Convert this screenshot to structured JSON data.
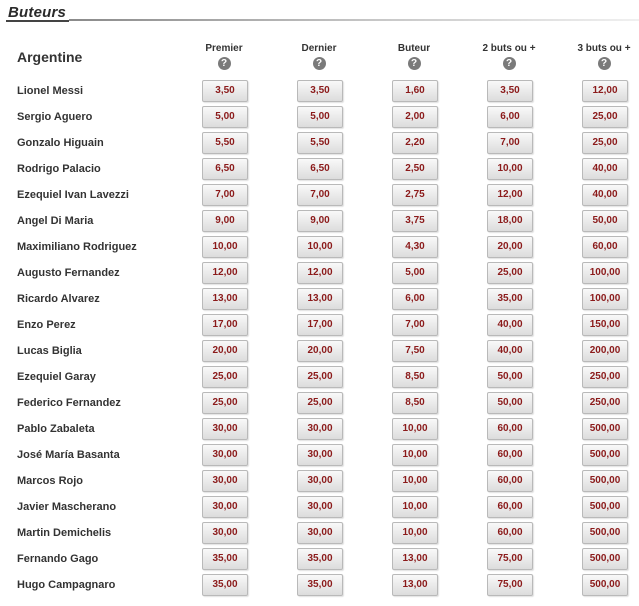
{
  "section": {
    "title": "Buteurs"
  },
  "team": "Argentine",
  "columns": [
    {
      "label": "Premier",
      "help_icon": "?"
    },
    {
      "label": "Dernier",
      "help_icon": "?"
    },
    {
      "label": "Buteur",
      "help_icon": "?"
    },
    {
      "label": "2 buts ou +",
      "help_icon": "?"
    },
    {
      "label": "3 buts ou +",
      "help_icon": "?"
    }
  ],
  "players": [
    {
      "name": "Lionel Messi",
      "odds": [
        "3,50",
        "3,50",
        "1,60",
        "3,50",
        "12,00"
      ]
    },
    {
      "name": "Sergio Aguero",
      "odds": [
        "5,00",
        "5,00",
        "2,00",
        "6,00",
        "25,00"
      ]
    },
    {
      "name": "Gonzalo Higuain",
      "odds": [
        "5,50",
        "5,50",
        "2,20",
        "7,00",
        "25,00"
      ]
    },
    {
      "name": "Rodrigo Palacio",
      "odds": [
        "6,50",
        "6,50",
        "2,50",
        "10,00",
        "40,00"
      ]
    },
    {
      "name": "Ezequiel Ivan Lavezzi",
      "odds": [
        "7,00",
        "7,00",
        "2,75",
        "12,00",
        "40,00"
      ]
    },
    {
      "name": "Angel Di Maria",
      "odds": [
        "9,00",
        "9,00",
        "3,75",
        "18,00",
        "50,00"
      ]
    },
    {
      "name": "Maximiliano Rodriguez",
      "odds": [
        "10,00",
        "10,00",
        "4,30",
        "20,00",
        "60,00"
      ]
    },
    {
      "name": "Augusto Fernandez",
      "odds": [
        "12,00",
        "12,00",
        "5,00",
        "25,00",
        "100,00"
      ]
    },
    {
      "name": "Ricardo Alvarez",
      "odds": [
        "13,00",
        "13,00",
        "6,00",
        "35,00",
        "100,00"
      ]
    },
    {
      "name": "Enzo Perez",
      "odds": [
        "17,00",
        "17,00",
        "7,00",
        "40,00",
        "150,00"
      ]
    },
    {
      "name": "Lucas Biglia",
      "odds": [
        "20,00",
        "20,00",
        "7,50",
        "40,00",
        "200,00"
      ]
    },
    {
      "name": "Ezequiel Garay",
      "odds": [
        "25,00",
        "25,00",
        "8,50",
        "50,00",
        "250,00"
      ]
    },
    {
      "name": "Federico Fernandez",
      "odds": [
        "25,00",
        "25,00",
        "8,50",
        "50,00",
        "250,00"
      ]
    },
    {
      "name": "Pablo Zabaleta",
      "odds": [
        "30,00",
        "30,00",
        "10,00",
        "60,00",
        "500,00"
      ]
    },
    {
      "name": "José María Basanta",
      "odds": [
        "30,00",
        "30,00",
        "10,00",
        "60,00",
        "500,00"
      ]
    },
    {
      "name": "Marcos Rojo",
      "odds": [
        "30,00",
        "30,00",
        "10,00",
        "60,00",
        "500,00"
      ]
    },
    {
      "name": "Javier Mascherano",
      "odds": [
        "30,00",
        "30,00",
        "10,00",
        "60,00",
        "500,00"
      ]
    },
    {
      "name": "Martin Demichelis",
      "odds": [
        "30,00",
        "30,00",
        "10,00",
        "60,00",
        "500,00"
      ]
    },
    {
      "name": "Fernando Gago",
      "odds": [
        "35,00",
        "35,00",
        "13,00",
        "75,00",
        "500,00"
      ]
    },
    {
      "name": "Hugo Campagnaro",
      "odds": [
        "35,00",
        "35,00",
        "13,00",
        "75,00",
        "500,00"
      ]
    }
  ],
  "colors": {
    "odds_text": "#8b1a1a",
    "button_border": "#b9b9b9"
  }
}
